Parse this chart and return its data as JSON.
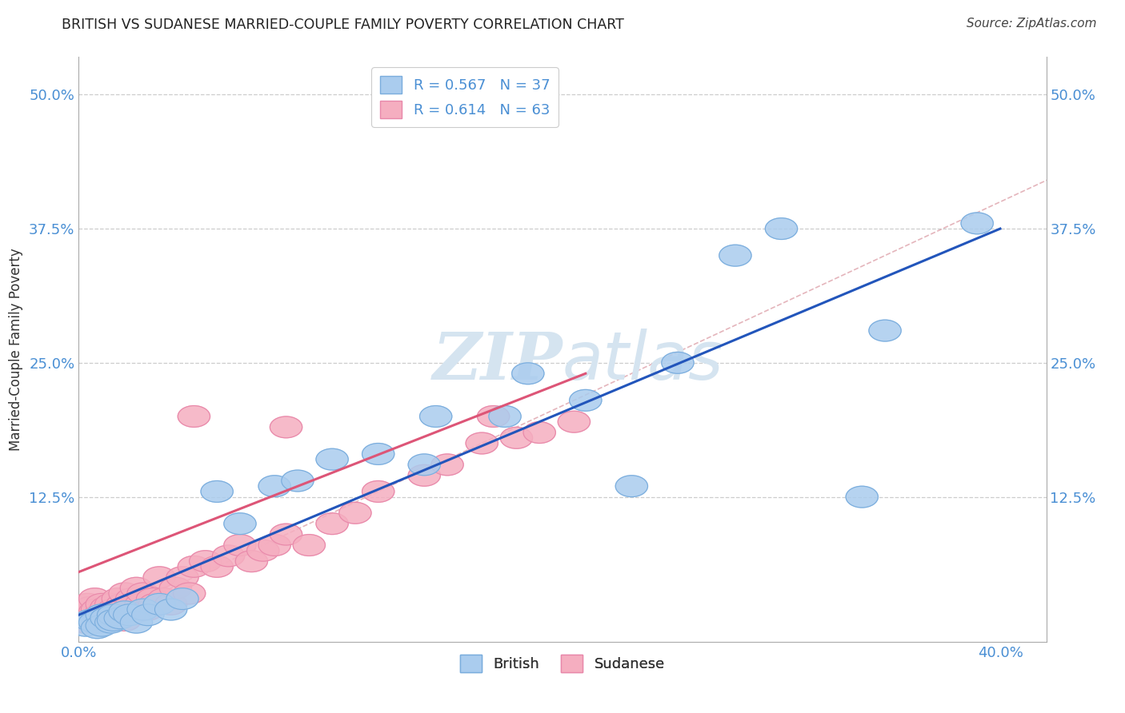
{
  "title": "BRITISH VS SUDANESE MARRIED-COUPLE FAMILY POVERTY CORRELATION CHART",
  "source": "Source: ZipAtlas.com",
  "ylabel": "Married-Couple Family Poverty",
  "xlim": [
    0.0,
    0.42
  ],
  "ylim": [
    -0.01,
    0.535
  ],
  "xticks": [
    0.0,
    0.1,
    0.2,
    0.3,
    0.4
  ],
  "xtick_labels_show": [
    "0.0%",
    "",
    "",
    "",
    "40.0%"
  ],
  "ytick_positions": [
    0.0,
    0.125,
    0.25,
    0.375,
    0.5
  ],
  "ytick_labels_left": [
    "",
    "12.5%",
    "25.0%",
    "37.5%",
    "50.0%"
  ],
  "ytick_labels_right": [
    "",
    "12.5%",
    "25.0%",
    "37.5%",
    "50.0%"
  ],
  "grid_color": "#c8c8c8",
  "background_color": "#ffffff",
  "british_fill": "#aaccee",
  "british_edge": "#7aaddd",
  "sudanese_fill": "#f5aec0",
  "sudanese_edge": "#e888aa",
  "british_line_color": "#2255bb",
  "sudanese_line_color": "#dd5577",
  "diagonal_color": "#e0a8b0",
  "tick_color": "#4a8fd4",
  "title_color": "#222222",
  "source_color": "#444444",
  "ylabel_color": "#333333",
  "watermark_color": "#d5e4f0",
  "legend_R_british": "R = 0.567",
  "legend_N_british": "N = 37",
  "legend_R_sudanese": "R = 0.614",
  "legend_N_sudanese": "N = 63",
  "british_x": [
    0.003,
    0.005,
    0.007,
    0.008,
    0.01,
    0.01,
    0.012,
    0.014,
    0.015,
    0.015,
    0.018,
    0.02,
    0.022,
    0.025,
    0.028,
    0.03,
    0.035,
    0.04,
    0.045,
    0.06,
    0.07,
    0.085,
    0.095,
    0.11,
    0.13,
    0.15,
    0.155,
    0.185,
    0.195,
    0.22,
    0.24,
    0.26,
    0.285,
    0.305,
    0.34,
    0.35,
    0.39
  ],
  "british_y": [
    0.005,
    0.01,
    0.008,
    0.003,
    0.015,
    0.005,
    0.012,
    0.008,
    0.015,
    0.01,
    0.012,
    0.018,
    0.015,
    0.008,
    0.02,
    0.015,
    0.025,
    0.02,
    0.03,
    0.13,
    0.1,
    0.135,
    0.14,
    0.16,
    0.165,
    0.155,
    0.2,
    0.2,
    0.24,
    0.215,
    0.135,
    0.25,
    0.35,
    0.375,
    0.125,
    0.28,
    0.38
  ],
  "sudanese_x": [
    0.003,
    0.003,
    0.004,
    0.004,
    0.005,
    0.005,
    0.006,
    0.007,
    0.007,
    0.008,
    0.008,
    0.009,
    0.01,
    0.01,
    0.011,
    0.012,
    0.013,
    0.014,
    0.015,
    0.015,
    0.016,
    0.017,
    0.018,
    0.019,
    0.02,
    0.02,
    0.022,
    0.023,
    0.025,
    0.025,
    0.027,
    0.028,
    0.03,
    0.032,
    0.033,
    0.035,
    0.037,
    0.04,
    0.042,
    0.045,
    0.048,
    0.05,
    0.055,
    0.06,
    0.065,
    0.07,
    0.075,
    0.08,
    0.085,
    0.09,
    0.1,
    0.11,
    0.12,
    0.13,
    0.15,
    0.16,
    0.175,
    0.19,
    0.2,
    0.215,
    0.05,
    0.09,
    0.18
  ],
  "sudanese_y": [
    0.008,
    0.02,
    0.015,
    0.025,
    0.01,
    0.022,
    0.012,
    0.018,
    0.03,
    0.008,
    0.02,
    0.015,
    0.012,
    0.025,
    0.018,
    0.022,
    0.01,
    0.025,
    0.012,
    0.02,
    0.018,
    0.03,
    0.015,
    0.025,
    0.01,
    0.035,
    0.02,
    0.03,
    0.018,
    0.04,
    0.025,
    0.035,
    0.02,
    0.03,
    0.025,
    0.05,
    0.03,
    0.025,
    0.04,
    0.05,
    0.035,
    0.06,
    0.065,
    0.06,
    0.07,
    0.08,
    0.065,
    0.075,
    0.08,
    0.09,
    0.08,
    0.1,
    0.11,
    0.13,
    0.145,
    0.155,
    0.175,
    0.18,
    0.185,
    0.195,
    0.2,
    0.19,
    0.2
  ]
}
